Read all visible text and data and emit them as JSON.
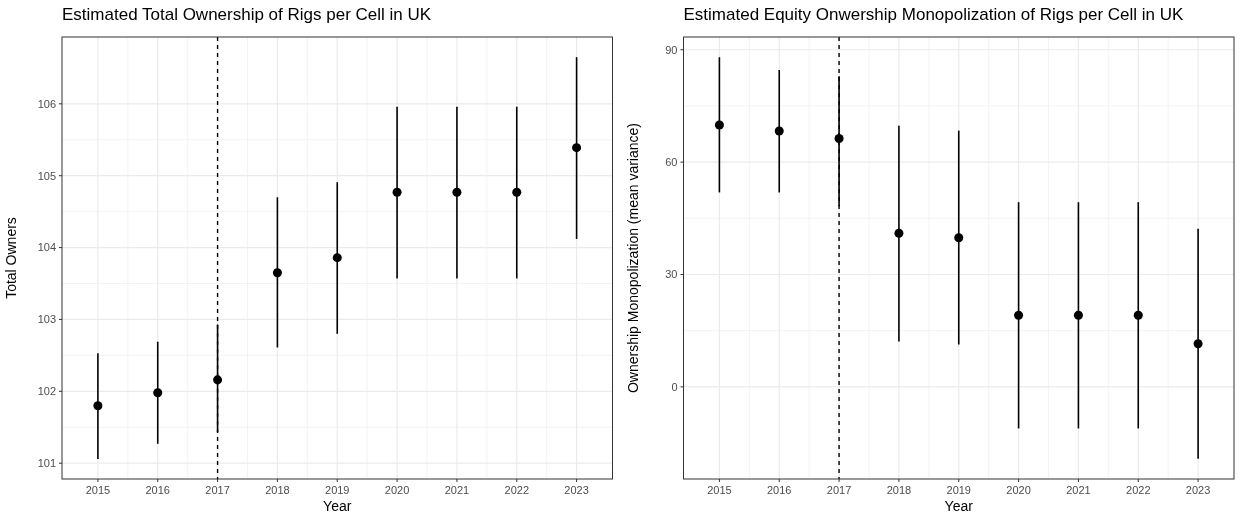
{
  "chart_data": [
    {
      "type": "scatter",
      "title": "Estimated Total Ownership of Rigs per Cell in UK",
      "xlabel": "Year",
      "ylabel": "Total Owners",
      "x": [
        2015,
        2016,
        2017,
        2018,
        2019,
        2020,
        2021,
        2022,
        2023
      ],
      "values": [
        101.8,
        101.98,
        102.16,
        103.65,
        103.86,
        104.77,
        104.77,
        104.77,
        105.39
      ],
      "errors": [
        [
          101.06,
          102.53
        ],
        [
          101.27,
          102.69
        ],
        [
          101.43,
          102.93
        ],
        [
          102.61,
          104.7
        ],
        [
          102.8,
          104.91
        ],
        [
          103.57,
          105.96
        ],
        [
          103.57,
          105.96
        ],
        [
          103.57,
          105.96
        ],
        [
          104.12,
          106.65
        ]
      ],
      "color": "#000000",
      "marker": "circle",
      "grid": true,
      "xlim": [
        2014.4,
        2023.6
      ],
      "xticks": [
        2015,
        2016,
        2017,
        2018,
        2019,
        2020,
        2021,
        2022,
        2023
      ],
      "ylim": [
        100.78,
        106.93
      ],
      "yticks": [
        101,
        102,
        103,
        104,
        105,
        106
      ],
      "ref_lines": [
        {
          "axis": "x",
          "value": 2017,
          "line_style": "dashed",
          "color": "#000000"
        }
      ]
    },
    {
      "type": "scatter",
      "title": "Estimated Equity Onwership Monopolization of Rigs per Cell in UK",
      "xlabel": "Year",
      "ylabel": "Ownership Monopolization (mean variance)",
      "x": [
        2015,
        2016,
        2017,
        2018,
        2019,
        2020,
        2021,
        2022,
        2023
      ],
      "values": [
        69.9,
        68.3,
        66.3,
        41.0,
        39.8,
        19.1,
        19.1,
        19.1,
        11.5
      ],
      "errors": [
        [
          51.9,
          88.0
        ],
        [
          51.9,
          84.6
        ],
        [
          48.2,
          82.9
        ],
        [
          12.1,
          69.7
        ],
        [
          11.3,
          68.4
        ],
        [
          -11.1,
          49.3
        ],
        [
          -11.1,
          49.3
        ],
        [
          -11.1,
          49.3
        ],
        [
          -19.2,
          42.2
        ]
      ],
      "color": "#000000",
      "marker": "circle",
      "grid": true,
      "xlim": [
        2014.4,
        2023.6
      ],
      "xticks": [
        2015,
        2016,
        2017,
        2018,
        2019,
        2020,
        2021,
        2022,
        2023
      ],
      "ylim": [
        -24.6,
        93.4
      ],
      "yticks": [
        0,
        30,
        60,
        90
      ],
      "ref_lines": [
        {
          "axis": "x",
          "value": 2017,
          "line_style": "dashed",
          "color": "#000000"
        }
      ]
    }
  ]
}
